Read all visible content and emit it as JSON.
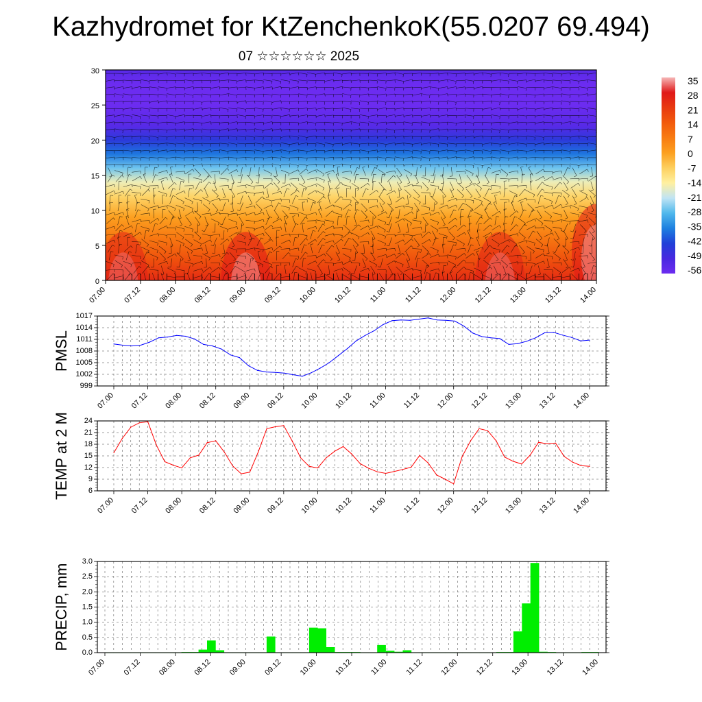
{
  "title": "Kazhydromet for KtZenchenkoK(55.0207 69.494)",
  "subtitle": "07 ☆☆☆☆☆☆ 2025",
  "x_tick_labels": [
    "07.00",
    "07.12",
    "08.00",
    "08.12",
    "09.00",
    "09.12",
    "10.00",
    "10.12",
    "11.00",
    "11.12",
    "12.00",
    "12.12",
    "13.00",
    "13.12",
    "14.00"
  ],
  "colorbar": {
    "labels": [
      "35",
      "28",
      "21",
      "14",
      "7",
      "0",
      "-7",
      "-14",
      "-21",
      "-28",
      "-35",
      "-42",
      "-49",
      "-56"
    ],
    "colors": [
      "#f6b6b6",
      "#e01818",
      "#e83a10",
      "#f25a0c",
      "#f87c12",
      "#fca020",
      "#fdd060",
      "#fff0a0",
      "#c0e4f4",
      "#50b8ec",
      "#1e80e0",
      "#2040d8",
      "#4828e0",
      "#6c2cf0"
    ]
  },
  "chart_data": [
    {
      "type": "heatmap",
      "title": "",
      "ylim": [
        0,
        30
      ],
      "y_ticks": [
        "0",
        "5",
        "10",
        "15",
        "20",
        "25",
        "30"
      ],
      "x_tick_labels": [
        "07.00",
        "07.12",
        "08.00",
        "08.12",
        "09.00",
        "09.12",
        "10.00",
        "10.12",
        "11.00",
        "11.12",
        "12.00",
        "12.12",
        "13.00",
        "13.12",
        "14.00"
      ],
      "ylevels": [
        0,
        3,
        6,
        9,
        12,
        14,
        16,
        18,
        20,
        22,
        25,
        28,
        30
      ],
      "temperature_by_level": [
        24,
        16,
        8,
        0,
        -8,
        -16,
        -26,
        -36,
        -44,
        -52,
        -58,
        -56,
        -52
      ],
      "hot_spots": [
        {
          "time_index": 2,
          "level": 3,
          "delta": 10
        },
        {
          "time_index": 16,
          "level": 3,
          "delta": 12
        },
        {
          "time_index": 45,
          "level": 3,
          "delta": 10
        },
        {
          "time_index": 56,
          "level": 7,
          "delta": 12
        }
      ],
      "vectors": "wind barbs overlay"
    },
    {
      "type": "line",
      "ylabel": "PMSL",
      "ylim": [
        999,
        1017
      ],
      "y_ticks": [
        "1017",
        "1014",
        "1011",
        "1008",
        "1005",
        "1002",
        "999"
      ],
      "x_tick_labels": [
        "07.00",
        "07.12",
        "08.00",
        "08.12",
        "09.00",
        "09.12",
        "10.00",
        "10.12",
        "11.00",
        "11.12",
        "12.00",
        "12.12",
        "13.00",
        "13.12",
        "14.00"
      ],
      "series": [
        {
          "color": "#0000ff",
          "values": [
            1009.8,
            1009.5,
            1009.3,
            1009.5,
            1010.3,
            1011.4,
            1011.6,
            1012.0,
            1011.8,
            1011.1,
            1009.7,
            1009.3,
            1008.5,
            1007.0,
            1006.3,
            1004.2,
            1003.0,
            1002.6,
            1002.5,
            1002.3,
            1001.9,
            1001.5,
            1002.4,
            1003.6,
            1005.0,
            1006.8,
            1008.6,
            1010.6,
            1012.0,
            1013.2,
            1014.8,
            1015.8,
            1016.0,
            1015.9,
            1016.2,
            1016.5,
            1016.0,
            1015.9,
            1015.7,
            1014.4,
            1012.6,
            1011.7,
            1011.4,
            1011.2,
            1009.7,
            1009.9,
            1010.5,
            1011.4,
            1012.7,
            1012.8,
            1012.1,
            1011.5,
            1010.6,
            1010.8
          ]
        }
      ]
    },
    {
      "type": "line",
      "ylabel": "TEMP at 2 M",
      "ylim": [
        6,
        24
      ],
      "y_ticks": [
        "24",
        "21",
        "18",
        "15",
        "12",
        "9",
        "6"
      ],
      "x_tick_labels": [
        "07.00",
        "07.12",
        "08.00",
        "08.12",
        "09.00",
        "09.12",
        "10.00",
        "10.12",
        "11.00",
        "11.12",
        "12.00",
        "12.12",
        "13.00",
        "13.12",
        "14.00"
      ],
      "series": [
        {
          "color": "#ff0000",
          "values": [
            15.8,
            19.5,
            22.4,
            23.5,
            23.8,
            17.8,
            13.5,
            12.6,
            11.9,
            14.5,
            15.2,
            18.4,
            18.9,
            16.0,
            12.4,
            10.4,
            10.8,
            16.0,
            22.0,
            22.5,
            22.8,
            18.8,
            14.5,
            12.3,
            11.9,
            14.5,
            16.2,
            17.4,
            15.5,
            13.0,
            11.8,
            10.9,
            10.5,
            11.0,
            11.5,
            12.1,
            15.1,
            13.2,
            10.1,
            9.0,
            7.8,
            14.8,
            18.9,
            22.0,
            21.5,
            18.9,
            14.7,
            13.6,
            12.9,
            15.2,
            18.5,
            18.1,
            18.3,
            14.9,
            13.4,
            12.5,
            12.3
          ]
        }
      ]
    },
    {
      "type": "bar",
      "ylabel": "PRECIP, mm",
      "ylim": [
        0,
        3.0
      ],
      "y_ticks": [
        "3.0",
        "2.5",
        "2.0",
        "1.5",
        "1.0",
        "0.5",
        "0.0"
      ],
      "x_tick_labels": [
        "07.00",
        "07.12",
        "08.00",
        "08.12",
        "09.00",
        "09.12",
        "10.00",
        "10.12",
        "11.00",
        "11.12",
        "12.00",
        "12.12",
        "13.00",
        "13.12",
        "14.00"
      ],
      "color": "#00ee00",
      "values": [
        0,
        0,
        0,
        0,
        0,
        0,
        0,
        0,
        0,
        0.02,
        0.02,
        0.1,
        0.4,
        0.08,
        0,
        0,
        0,
        0,
        0,
        0.53,
        0,
        0,
        0,
        0,
        0.82,
        0.8,
        0.18,
        0.02,
        0.02,
        0.02,
        0,
        0,
        0.25,
        0.06,
        0.03,
        0.08,
        0,
        0,
        0,
        0,
        0,
        0,
        0,
        0,
        0,
        0,
        0.02,
        0.02,
        0.7,
        1.62,
        2.95,
        0.03,
        0.02,
        0,
        0,
        0,
        0.02,
        0.02
      ]
    }
  ]
}
